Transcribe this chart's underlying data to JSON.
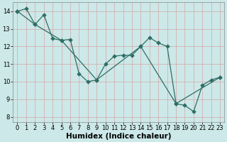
{
  "xlabel": "Humidex (Indice chaleur)",
  "bg_color": "#cce8e8",
  "line_color": "#2e6e65",
  "grid_color": "#aacfcf",
  "xlim": [
    -0.5,
    23.5
  ],
  "ylim": [
    7.7,
    14.5
  ],
  "xticks": [
    0,
    1,
    2,
    3,
    4,
    5,
    6,
    7,
    8,
    9,
    10,
    11,
    12,
    13,
    14,
    15,
    16,
    17,
    18,
    19,
    20,
    21,
    22,
    23
  ],
  "yticks": [
    8,
    9,
    10,
    11,
    12,
    13,
    14
  ],
  "xlabel_fontsize": 7.5,
  "tick_fontsize": 6.0,
  "line1_x": [
    0,
    1,
    2,
    3,
    4,
    5,
    6,
    7,
    8,
    9,
    10,
    11,
    12,
    13,
    14,
    15,
    16,
    17,
    18,
    19,
    20,
    21,
    22,
    23
  ],
  "line1_y": [
    14.0,
    14.15,
    13.25,
    13.8,
    12.45,
    12.35,
    12.4,
    10.45,
    10.0,
    10.1,
    11.0,
    11.45,
    11.5,
    11.5,
    12.0,
    12.5,
    12.2,
    12.0,
    8.75,
    8.65,
    8.3,
    9.8,
    10.1,
    10.25
  ],
  "line2_x": [
    0,
    2,
    5,
    9,
    14,
    18,
    23
  ],
  "line2_y": [
    14.0,
    13.25,
    12.35,
    10.1,
    12.0,
    8.75,
    10.25
  ]
}
